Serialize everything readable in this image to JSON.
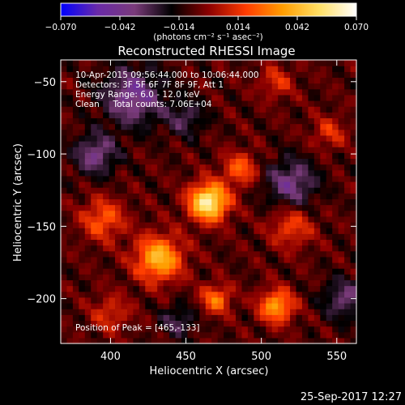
{
  "chart_data": {
    "type": "heatmap",
    "title": "Reconstructed RHESSI Image",
    "xlabel": "Heliocentric X (arcsec)",
    "ylabel": "Heliocentric Y (arcsec)",
    "xlim": [
      367,
      563
    ],
    "ylim": [
      -231,
      -35
    ],
    "xticks": [
      400,
      450,
      500,
      550
    ],
    "yticks": [
      -50,
      -100,
      -150,
      -200
    ],
    "colorbar": {
      "range": [
        -0.07,
        0.07
      ],
      "ticks": [
        "−0.070",
        "−0.042",
        "−0.014",
        "0.014",
        "0.042",
        "0.070"
      ],
      "unit_label": "(photons cm⁻² s⁻¹ asec⁻²)",
      "colormap": [
        "#0000ff",
        "#6a2aa8",
        "#7a3b7a",
        "#000000",
        "#8b0000",
        "#ff3b00",
        "#ff9d00",
        "#ffe066",
        "#ffffff"
      ]
    },
    "annotations": [
      "10-Apr-2015 09:56:44.000 to 10:06:44.000",
      "Detectors: 3F 5F 6F 7F 8F 9F, Att 1",
      "Energy Range: 6.0 - 12.0 keV",
      "Clean     Total counts: 7.06E+04",
      "Position of Peak = [465,-133]"
    ],
    "peak": {
      "x": 465,
      "y": -133
    },
    "sources": [
      {
        "x": 465,
        "y": -133,
        "amplitude": 0.07,
        "sigma": 9
      },
      {
        "x": 432,
        "y": -172,
        "amplitude": 0.05,
        "sigma": 11
      },
      {
        "x": 486,
        "y": -110,
        "amplitude": 0.03,
        "sigma": 8
      },
      {
        "x": 510,
        "y": -205,
        "amplitude": 0.045,
        "sigma": 8
      },
      {
        "x": 470,
        "y": -200,
        "amplitude": 0.035,
        "sigma": 7
      },
      {
        "x": 395,
        "y": -145,
        "amplitude": 0.03,
        "sigma": 10
      },
      {
        "x": 520,
        "y": -150,
        "amplitude": 0.025,
        "sigma": 10
      },
      {
        "x": 545,
        "y": -85,
        "amplitude": 0.02,
        "sigma": 8
      },
      {
        "x": 510,
        "y": -50,
        "amplitude": 0.02,
        "sigma": 8
      },
      {
        "x": 400,
        "y": -210,
        "amplitude": 0.02,
        "sigma": 9
      },
      {
        "x": 415,
        "y": -60,
        "amplitude": -0.035,
        "sigma": 14
      },
      {
        "x": 390,
        "y": -100,
        "amplitude": -0.03,
        "sigma": 10
      },
      {
        "x": 520,
        "y": -120,
        "amplitude": -0.03,
        "sigma": 12
      },
      {
        "x": 450,
        "y": -75,
        "amplitude": -0.02,
        "sigma": 9
      },
      {
        "x": 555,
        "y": -200,
        "amplitude": -0.025,
        "sigma": 10
      },
      {
        "x": 445,
        "y": -215,
        "amplitude": -0.02,
        "sigma": 8
      }
    ]
  },
  "footer": {
    "timestamp": "25-Sep-2017 12:27"
  }
}
